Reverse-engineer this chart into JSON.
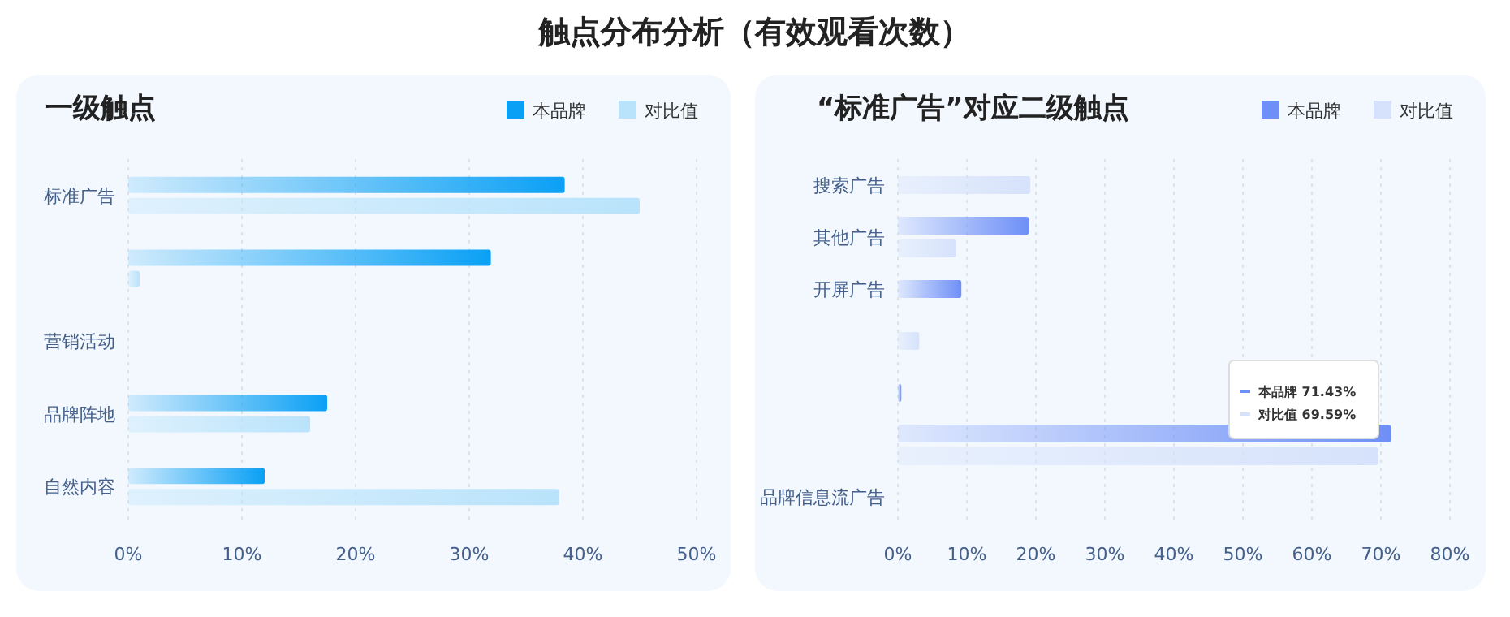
{
  "chart_data": [
    {
      "type": "bar",
      "orientation": "horizontal",
      "title": "触点分布分析（有效观看次数）",
      "subtitle": "一级触点",
      "categories": [
        "标准广告",
        null,
        "营销活动",
        "品牌阵地",
        "自然内容"
      ],
      "series": [
        {
          "name": "本品牌",
          "color": "#0aa0f5",
          "values": [
            38.4,
            31.9,
            null,
            17.5,
            12.0
          ]
        },
        {
          "name": "对比值",
          "color": "#b9e3fb",
          "values": [
            45.0,
            1.0,
            null,
            16.0,
            37.9
          ]
        }
      ],
      "xlim": [
        0,
        50
      ],
      "xticks": [
        {
          "value": 0,
          "label": "0%"
        },
        {
          "value": 10,
          "label": "10%"
        },
        {
          "value": 20,
          "label": "20%"
        },
        {
          "value": 30,
          "label": "30%"
        },
        {
          "value": 40,
          "label": "40%"
        },
        {
          "value": 50,
          "label": "50%"
        }
      ],
      "grid": "x",
      "legend": "top right"
    },
    {
      "type": "bar",
      "orientation": "horizontal",
      "title": "“标准广告”对应二级触点",
      "categories": [
        "搜索广告",
        "其他广告",
        "开屏广告",
        null,
        null,
        null,
        "品牌信息流广告"
      ],
      "series": [
        {
          "name": "本品牌",
          "color": "#6e8ff7",
          "values": [
            null,
            19.0,
            9.2,
            null,
            0.5,
            71.43,
            null
          ]
        },
        {
          "name": "对比值",
          "color": "#d6e2fb",
          "values": [
            19.2,
            8.4,
            null,
            3.1,
            null,
            69.59,
            null
          ]
        }
      ],
      "xlim": [
        0,
        80
      ],
      "xticks": [
        {
          "value": 0,
          "label": "0%"
        },
        {
          "value": 10,
          "label": "10%"
        },
        {
          "value": 20,
          "label": "20%"
        },
        {
          "value": 30,
          "label": "30%"
        },
        {
          "value": 40,
          "label": "40%"
        },
        {
          "value": 50,
          "label": "50%"
        },
        {
          "value": 60,
          "label": "60%"
        },
        {
          "value": 70,
          "label": "70%"
        },
        {
          "value": 80,
          "label": "80%"
        }
      ],
      "grid": "x",
      "legend": "top right",
      "annotations": [
        "本品牌 71.43%",
        "对比值 69.59%"
      ]
    }
  ]
}
